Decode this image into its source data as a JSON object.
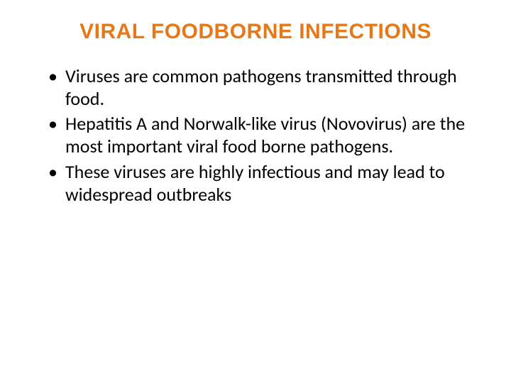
{
  "slide": {
    "title": "VIRAL FOODBORNE INFECTIONS",
    "title_color": "#e77817",
    "title_fontsize": 30,
    "background_color": "#ffffff",
    "body_color": "#000000",
    "body_fontsize": 26,
    "line_height": 1.22,
    "bullets": [
      "Viruses are common pathogens transmitted through food.",
      "Hepatitis A and Norwalk-like virus (Novovirus) are the most important viral food borne pathogens.",
      "These viruses are highly infectious and may lead to widespread outbreaks"
    ]
  }
}
